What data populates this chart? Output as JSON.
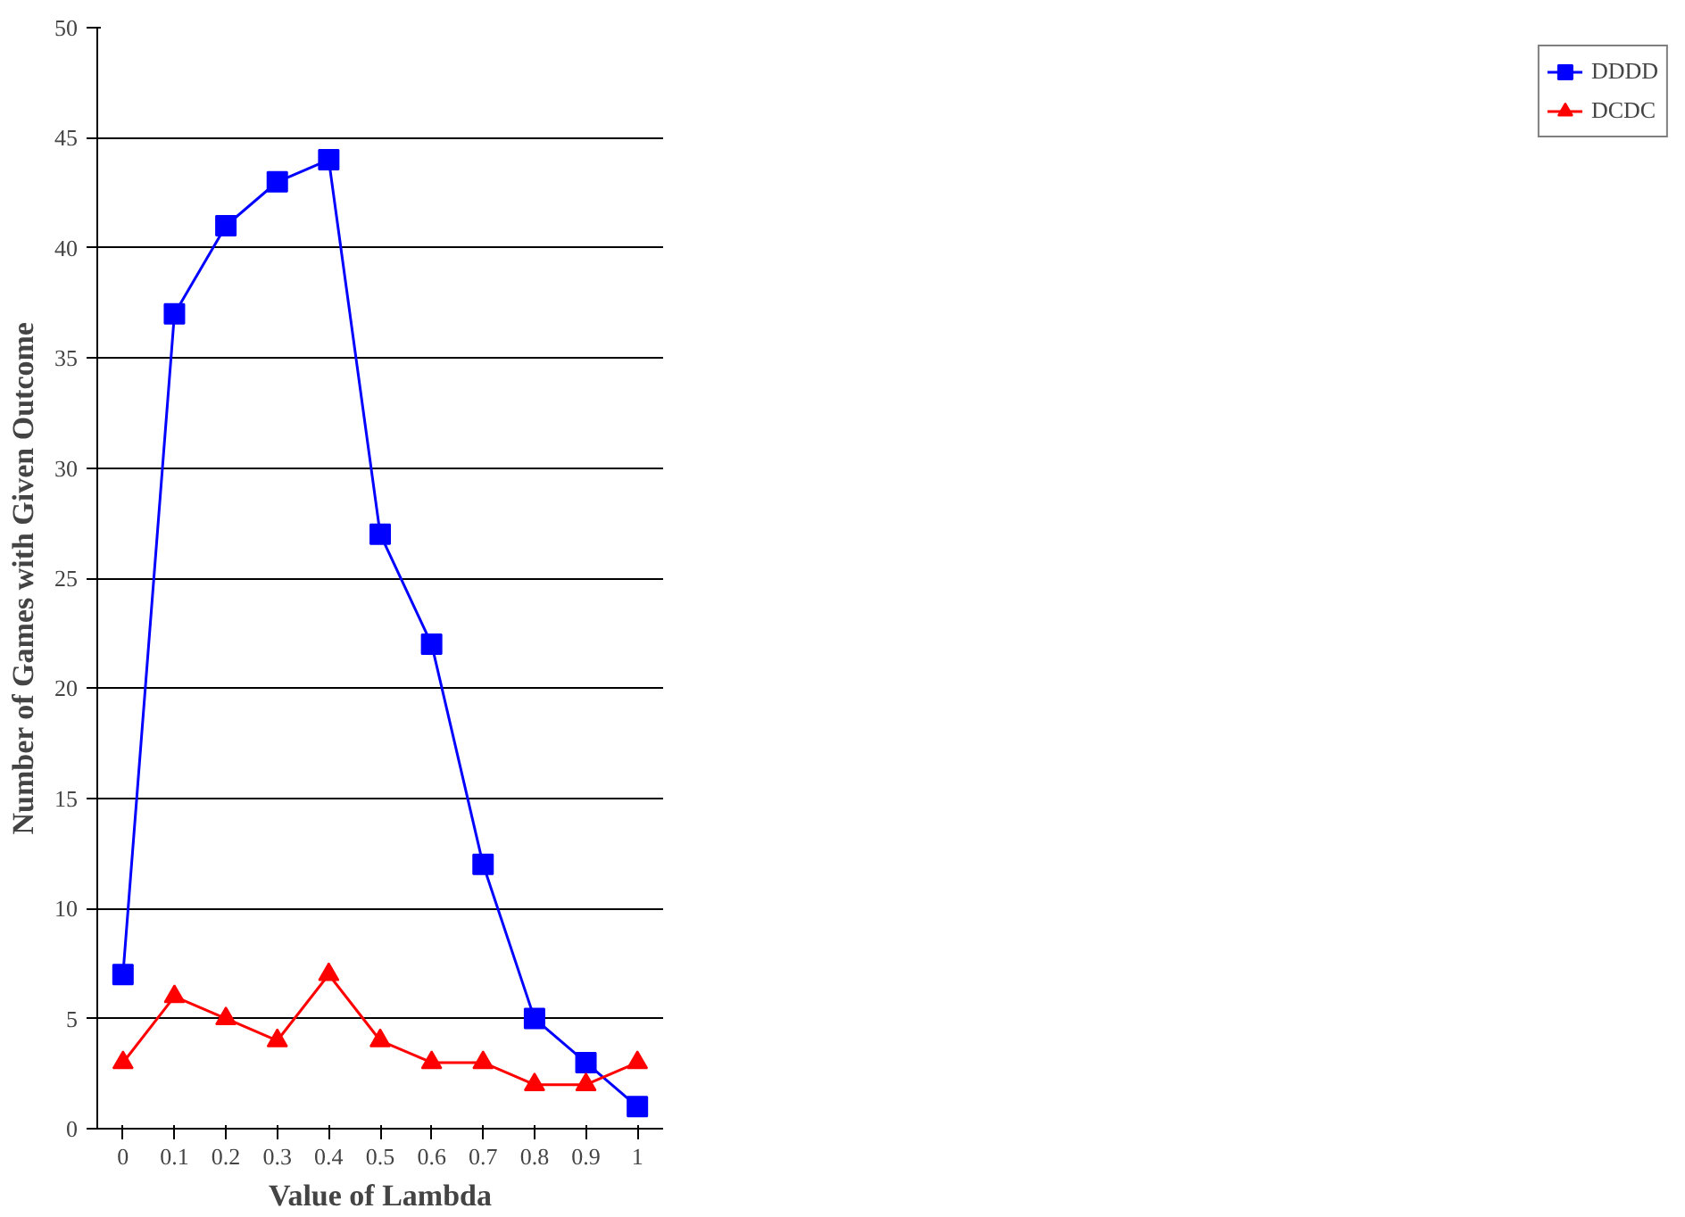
{
  "chart_data": {
    "type": "line",
    "xlabel": "Value of Lambda",
    "ylabel": "Number of Games with Given Outcome",
    "categories": [
      "0",
      "0.1",
      "0.2",
      "0.3",
      "0.4",
      "0.5",
      "0.6",
      "0.7",
      "0.8",
      "0.9",
      "1"
    ],
    "series": [
      {
        "name": "DDDD",
        "color": "#0000ff",
        "marker": "square",
        "values": [
          7,
          37,
          41,
          43,
          44,
          27,
          22,
          12,
          5,
          3,
          1
        ]
      },
      {
        "name": "DCDC",
        "color": "#ff0000",
        "marker": "triangle",
        "values": [
          3,
          6,
          5,
          4,
          7,
          4,
          3,
          3,
          2,
          2,
          3
        ]
      }
    ],
    "ylim": [
      0,
      50
    ],
    "yticks": [
      0,
      5,
      10,
      15,
      20,
      25,
      30,
      35,
      40,
      45,
      50
    ],
    "grid": "y",
    "legend": "right",
    "line_style": "solid"
  }
}
